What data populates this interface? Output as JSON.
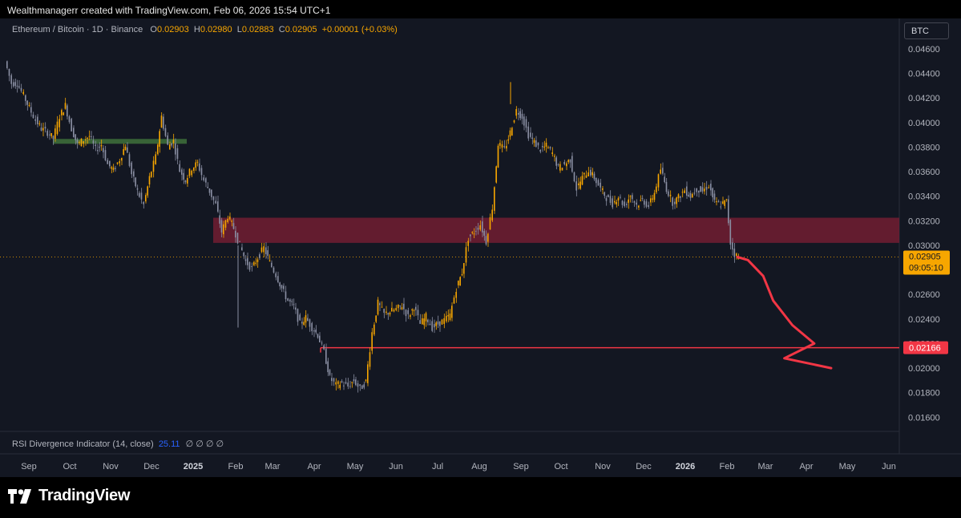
{
  "header": {
    "attribution": "Wealthmanagerr created with TradingView.com, Feb 06, 2026 15:54 UTC+1"
  },
  "legend": {
    "symbol": "Ethereum / Bitcoin · 1D · Binance",
    "o_label": "O",
    "o_value": "0.02903",
    "h_label": "H",
    "h_value": "0.02980",
    "l_label": "L",
    "l_value": "0.02883",
    "c_label": "C",
    "c_value": "0.02905",
    "change": "+0.00001 (+0.03%)"
  },
  "currency_button": "BTC",
  "price_axis": {
    "ticks": [
      "0.04600",
      "0.04400",
      "0.04200",
      "0.04000",
      "0.03800",
      "0.03600",
      "0.03400",
      "0.03200",
      "0.03000",
      "0.02800",
      "0.02600",
      "0.02400",
      "0.02200",
      "0.02000",
      "0.01800",
      "0.01600"
    ],
    "current_price_label": "0.02905",
    "countdown_label": "09:05:10",
    "level_label": "0.02166"
  },
  "time_axis": {
    "ticks": [
      "Sep",
      "Oct",
      "Nov",
      "Dec",
      "2025",
      "Feb",
      "Mar",
      "Apr",
      "May",
      "Jun",
      "Jul",
      "Aug",
      "Sep",
      "Oct",
      "Nov",
      "Dec",
      "2026",
      "Feb",
      "Mar",
      "Apr",
      "May",
      "Jun"
    ]
  },
  "indicator": {
    "name": "RSI Divergence Indicator (14, close)",
    "value": "25.11",
    "symbols": "∅ ∅ ∅ ∅"
  },
  "colors": {
    "background": "#131722",
    "candle_up": "#f7a600",
    "candle_down": "#8a8fa3",
    "resistance_zone": "#7a1e33",
    "projection": "#f23645",
    "support_line": "#f23645",
    "green_zone": "#3d6b3a"
  },
  "chart_data": {
    "type": "candlestick",
    "series_name": "ETH/BTC",
    "ylim": [
      0.0155,
      0.047
    ],
    "x_ticks": [
      "Sep",
      "Oct",
      "Nov",
      "Dec",
      "2025",
      "Feb",
      "Mar",
      "Apr",
      "May",
      "Jun",
      "Jul",
      "Aug",
      "Sep",
      "Oct",
      "Nov",
      "Dec",
      "2026",
      "Feb",
      "Mar",
      "Apr",
      "May",
      "Jun"
    ],
    "price_path": [
      [
        0,
        0.045
      ],
      [
        8,
        0.0432
      ],
      [
        15,
        0.0432
      ],
      [
        23,
        0.0422
      ],
      [
        30,
        0.0412
      ],
      [
        38,
        0.0402
      ],
      [
        45,
        0.0395
      ],
      [
        53,
        0.0392
      ],
      [
        60,
        0.0387
      ],
      [
        68,
        0.0405
      ],
      [
        75,
        0.0414
      ],
      [
        83,
        0.0395
      ],
      [
        90,
        0.0382
      ],
      [
        98,
        0.0386
      ],
      [
        105,
        0.0389
      ],
      [
        113,
        0.0378
      ],
      [
        120,
        0.0382
      ],
      [
        128,
        0.0366
      ],
      [
        135,
        0.0361
      ],
      [
        143,
        0.037
      ],
      [
        150,
        0.0382
      ],
      [
        158,
        0.0358
      ],
      [
        165,
        0.0344
      ],
      [
        173,
        0.0333
      ],
      [
        180,
        0.0355
      ],
      [
        188,
        0.0372
      ],
      [
        195,
        0.0405
      ],
      [
        203,
        0.0381
      ],
      [
        210,
        0.0385
      ],
      [
        218,
        0.0361
      ],
      [
        225,
        0.0353
      ],
      [
        233,
        0.0363
      ],
      [
        240,
        0.0367
      ],
      [
        248,
        0.0353
      ],
      [
        255,
        0.0344
      ],
      [
        263,
        0.0333
      ],
      [
        270,
        0.0311
      ],
      [
        278,
        0.0324
      ],
      [
        285,
        0.0314
      ],
      [
        293,
        0.03
      ],
      [
        300,
        0.0287
      ],
      [
        308,
        0.0281
      ],
      [
        315,
        0.029
      ],
      [
        323,
        0.0298
      ],
      [
        330,
        0.0286
      ],
      [
        338,
        0.0276
      ],
      [
        345,
        0.0265
      ],
      [
        353,
        0.0255
      ],
      [
        360,
        0.025
      ],
      [
        368,
        0.0236
      ],
      [
        375,
        0.0241
      ],
      [
        383,
        0.0233
      ],
      [
        390,
        0.0227
      ],
      [
        398,
        0.0213
      ],
      [
        405,
        0.0192
      ],
      [
        413,
        0.0186
      ],
      [
        420,
        0.0188
      ],
      [
        428,
        0.0185
      ],
      [
        435,
        0.019
      ],
      [
        443,
        0.0183
      ],
      [
        450,
        0.0189
      ],
      [
        458,
        0.0229
      ],
      [
        465,
        0.0253
      ],
      [
        473,
        0.0244
      ],
      [
        480,
        0.0246
      ],
      [
        488,
        0.0248
      ],
      [
        495,
        0.0251
      ],
      [
        503,
        0.0242
      ],
      [
        510,
        0.025
      ],
      [
        518,
        0.0236
      ],
      [
        525,
        0.0242
      ],
      [
        533,
        0.0233
      ],
      [
        540,
        0.0236
      ],
      [
        548,
        0.0239
      ],
      [
        555,
        0.0243
      ],
      [
        563,
        0.0265
      ],
      [
        570,
        0.0278
      ],
      [
        578,
        0.0306
      ],
      [
        585,
        0.0311
      ],
      [
        593,
        0.0317
      ],
      [
        600,
        0.0303
      ],
      [
        608,
        0.0331
      ],
      [
        615,
        0.0383
      ],
      [
        623,
        0.0378
      ],
      [
        630,
        0.0392
      ],
      [
        638,
        0.041
      ],
      [
        645,
        0.0405
      ],
      [
        653,
        0.039
      ],
      [
        660,
        0.0384
      ],
      [
        668,
        0.0378
      ],
      [
        675,
        0.0381
      ],
      [
        683,
        0.0375
      ],
      [
        690,
        0.0363
      ],
      [
        698,
        0.0366
      ],
      [
        705,
        0.037
      ],
      [
        713,
        0.0346
      ],
      [
        720,
        0.0355
      ],
      [
        728,
        0.0361
      ],
      [
        735,
        0.0355
      ],
      [
        743,
        0.0346
      ],
      [
        750,
        0.0339
      ],
      [
        758,
        0.0334
      ],
      [
        765,
        0.034
      ],
      [
        773,
        0.0332
      ],
      [
        780,
        0.0341
      ],
      [
        788,
        0.0333
      ],
      [
        795,
        0.0337
      ],
      [
        803,
        0.0332
      ],
      [
        810,
        0.0343
      ],
      [
        818,
        0.0362
      ],
      [
        825,
        0.0346
      ],
      [
        833,
        0.0335
      ],
      [
        840,
        0.0339
      ],
      [
        848,
        0.0345
      ],
      [
        855,
        0.034
      ],
      [
        863,
        0.0346
      ],
      [
        870,
        0.0344
      ],
      [
        878,
        0.0349
      ],
      [
        885,
        0.0335
      ],
      [
        893,
        0.0333
      ],
      [
        900,
        0.0336
      ],
      [
        905,
        0.0302
      ],
      [
        910,
        0.0293
      ],
      [
        915,
        0.029
      ]
    ],
    "resistance_zone": {
      "from": 0.0302,
      "to": 0.03225
    },
    "support_level": 0.02166,
    "current_price": 0.02905,
    "green_zone_level": 0.03847,
    "projection_path": [
      [
        0.02905,
        0
      ],
      [
        0.0288,
        0.04
      ],
      [
        0.0275,
        0.12
      ],
      [
        0.0255,
        0.22
      ],
      [
        0.0235,
        0.36
      ],
      [
        0.022,
        0.54
      ],
      [
        0.0208,
        0.74
      ],
      [
        0.02,
        1.0
      ]
    ]
  }
}
